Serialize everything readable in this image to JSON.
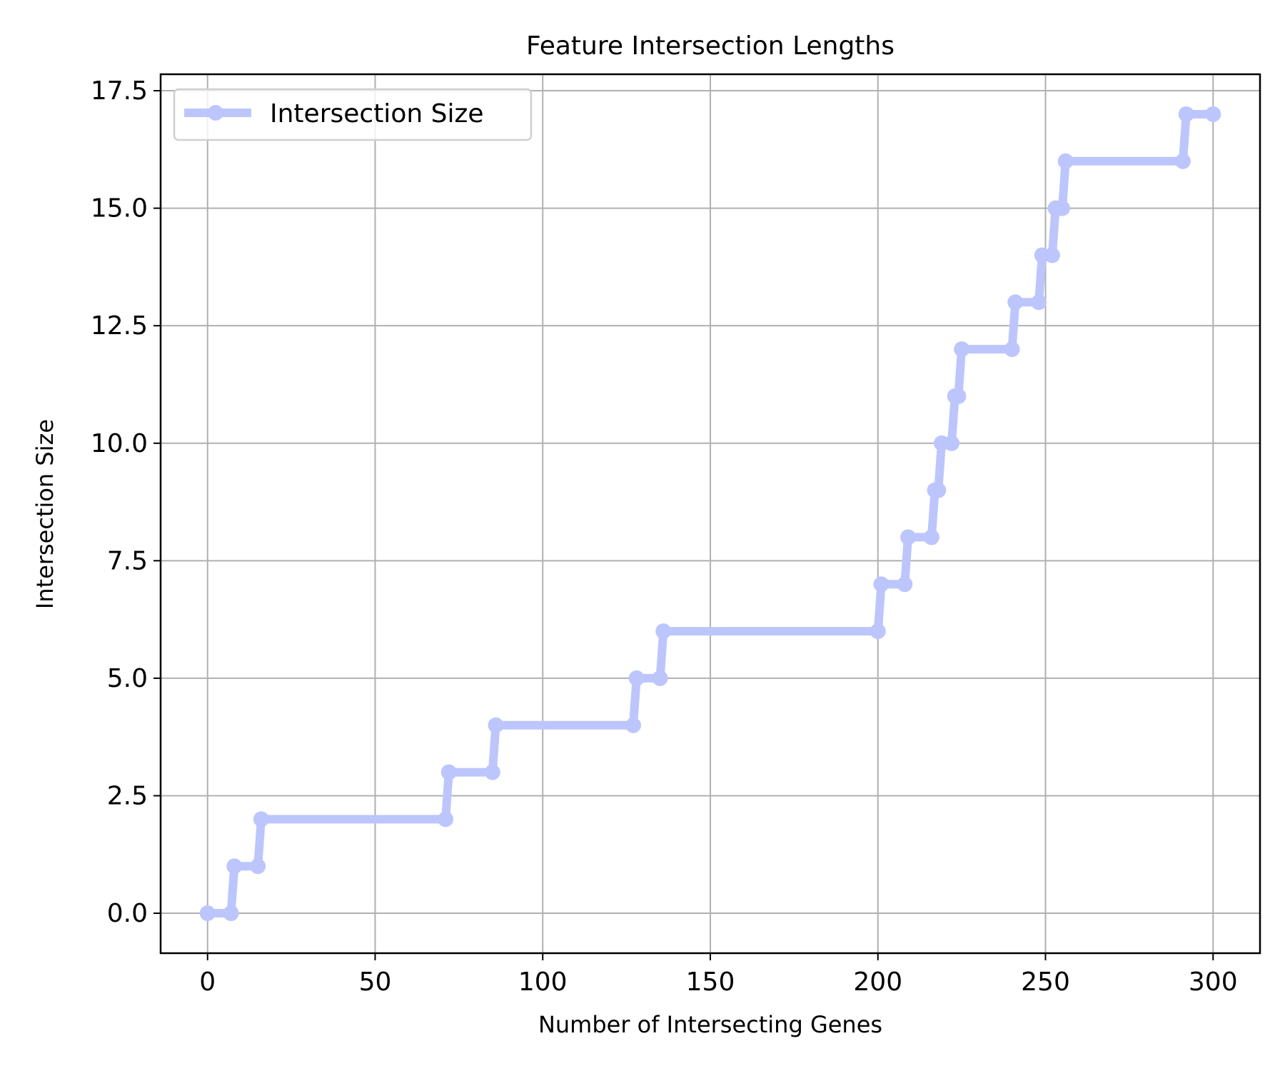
{
  "chart_data": {
    "type": "line",
    "title": "Feature Intersection Lengths",
    "xlabel": "Number of Intersecting Genes",
    "ylabel": "Intersection Size",
    "xlim": [
      -14,
      314
    ],
    "ylim": [
      -0.85,
      17.85
    ],
    "xticks": [
      0,
      50,
      100,
      150,
      200,
      250,
      300
    ],
    "yticks": [
      0.0,
      2.5,
      5.0,
      7.5,
      10.0,
      12.5,
      15.0,
      17.5
    ],
    "xtick_labels": [
      "0",
      "50",
      "100",
      "150",
      "200",
      "250",
      "300"
    ],
    "ytick_labels": [
      "0.0",
      "2.5",
      "5.0",
      "7.5",
      "10.0",
      "12.5",
      "15.0",
      "17.5"
    ],
    "grid": true,
    "legend_position": "top-left",
    "color": "#bcc6fd",
    "series": [
      {
        "name": "Intersection Size",
        "x": [
          0,
          7,
          8,
          15,
          16,
          71,
          72,
          85,
          86,
          127,
          128,
          135,
          136,
          200,
          201,
          208,
          209,
          216,
          217,
          218,
          219,
          222,
          223,
          224,
          225,
          240,
          241,
          248,
          249,
          252,
          253,
          254,
          255,
          256,
          291,
          292,
          300
        ],
        "y": [
          0,
          0,
          1,
          1,
          2,
          2,
          3,
          3,
          4,
          4,
          5,
          5,
          6,
          6,
          7,
          7,
          8,
          8,
          9,
          9,
          10,
          10,
          11,
          11,
          12,
          12,
          13,
          13,
          14,
          14,
          15,
          15,
          15,
          16,
          16,
          17,
          17
        ]
      }
    ]
  }
}
